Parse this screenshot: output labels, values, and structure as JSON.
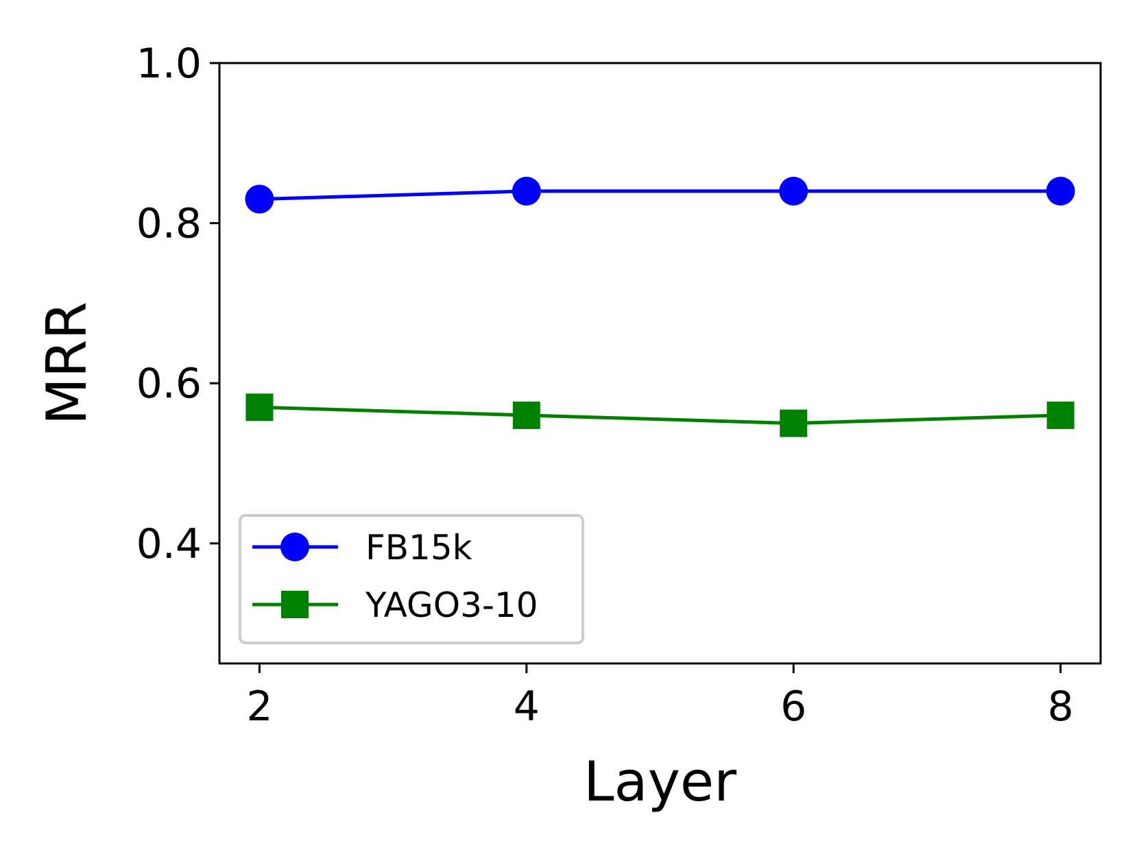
{
  "chart_data": {
    "type": "line",
    "title": "",
    "xlabel": "Layer",
    "ylabel": "MRR",
    "x": [
      2,
      4,
      6,
      8
    ],
    "xlim": [
      1.7,
      8.3
    ],
    "ylim": [
      0.25,
      1.0
    ],
    "xticks": [
      2,
      4,
      6,
      8
    ],
    "xtick_labels": [
      "2",
      "4",
      "6",
      "8"
    ],
    "yticks": [
      0.4,
      0.6,
      0.8,
      1.0
    ],
    "ytick_labels": [
      "0.4",
      "0.6",
      "0.8",
      "1.0"
    ],
    "grid": false,
    "legend_position": "lower-left",
    "series": [
      {
        "name": "FB15k",
        "values": [
          0.83,
          0.84,
          0.84,
          0.84
        ],
        "color": "#0000ff",
        "marker": "circle"
      },
      {
        "name": "YAGO3-10",
        "values": [
          0.57,
          0.56,
          0.55,
          0.56
        ],
        "color": "#008000",
        "marker": "square"
      }
    ]
  }
}
